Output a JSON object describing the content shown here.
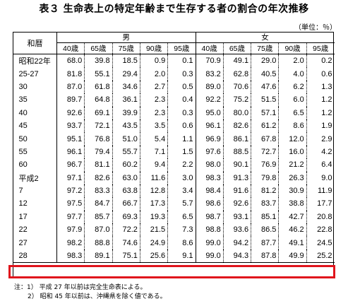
{
  "title": "表３ 生命表上の特定年齢まで生存する者の割合の年次推移",
  "unit": "（単位：％）",
  "header": {
    "era": "和暦",
    "male": "男",
    "female": "女",
    "ages": [
      "40歳",
      "65歳",
      "75歳",
      "90歳",
      "95歳"
    ]
  },
  "rows": [
    {
      "year": "昭和22年",
      "male": [
        "68.0",
        "39.8",
        "18.5",
        "0.9",
        "0.1"
      ],
      "female": [
        "70.9",
        "49.1",
        "29.0",
        "2.0",
        "0.2"
      ]
    },
    {
      "year": "25-27",
      "male": [
        "81.8",
        "55.1",
        "29.4",
        "2.0",
        "0.3"
      ],
      "female": [
        "83.2",
        "62.8",
        "40.5",
        "4.0",
        "0.6"
      ]
    },
    {
      "year": "30",
      "male": [
        "87.0",
        "61.8",
        "34.6",
        "2.7",
        "0.5"
      ],
      "female": [
        "89.0",
        "70.6",
        "47.6",
        "6.2",
        "1.3"
      ]
    },
    {
      "year": "35",
      "male": [
        "89.7",
        "64.8",
        "36.1",
        "2.3",
        "0.4"
      ],
      "female": [
        "92.2",
        "75.2",
        "51.5",
        "6.0",
        "1.2"
      ]
    },
    {
      "year": "40",
      "male": [
        "92.6",
        "69.1",
        "39.9",
        "2.3",
        "0.3"
      ],
      "female": [
        "95.0",
        "80.0",
        "57.1",
        "6.5",
        "1.2"
      ]
    },
    {
      "year": "45",
      "male": [
        "93.7",
        "72.1",
        "43.5",
        "3.5",
        "0.6"
      ],
      "female": [
        "96.1",
        "82.6",
        "61.2",
        "8.6",
        "1.9"
      ]
    },
    {
      "year": "50",
      "male": [
        "95.1",
        "76.8",
        "51.0",
        "5.4",
        "1.1"
      ],
      "female": [
        "96.9",
        "86.1",
        "67.8",
        "12.0",
        "2.9"
      ]
    },
    {
      "year": "55",
      "male": [
        "96.1",
        "79.4",
        "55.7",
        "7.1",
        "1.5"
      ],
      "female": [
        "97.6",
        "88.5",
        "72.7",
        "16.0",
        "4.2"
      ]
    },
    {
      "year": "60",
      "male": [
        "96.7",
        "81.1",
        "60.2",
        "9.4",
        "2.2"
      ],
      "female": [
        "98.0",
        "90.1",
        "76.9",
        "21.2",
        "6.4"
      ]
    },
    {
      "year": "平成2",
      "male": [
        "97.1",
        "82.6",
        "63.0",
        "11.6",
        "3.0"
      ],
      "female": [
        "98.3",
        "91.3",
        "79.8",
        "26.3",
        "9.0"
      ]
    },
    {
      "year": "7",
      "male": [
        "97.2",
        "83.3",
        "63.8",
        "12.8",
        "3.4"
      ],
      "female": [
        "98.4",
        "91.6",
        "81.2",
        "30.9",
        "11.9"
      ]
    },
    {
      "year": "12",
      "male": [
        "97.5",
        "84.7",
        "66.7",
        "17.3",
        "5.7"
      ],
      "female": [
        "98.6",
        "92.6",
        "83.7",
        "38.8",
        "17.7"
      ]
    },
    {
      "year": "17",
      "male": [
        "97.7",
        "85.7",
        "69.3",
        "19.3",
        "6.5"
      ],
      "female": [
        "98.7",
        "93.1",
        "85.1",
        "42.7",
        "20.8"
      ]
    },
    {
      "year": "22",
      "male": [
        "97.9",
        "87.0",
        "72.2",
        "21.5",
        "7.3"
      ],
      "female": [
        "98.8",
        "93.6",
        "86.5",
        "46.2",
        "22.8"
      ]
    },
    {
      "year": "27",
      "male": [
        "98.2",
        "88.8",
        "74.6",
        "24.9",
        "8.6"
      ],
      "female": [
        "99.0",
        "94.2",
        "87.7",
        "49.1",
        "24.5"
      ]
    },
    {
      "year": "28",
      "male": [
        "98.3",
        "89.1",
        "75.1",
        "25.6",
        "9.1"
      ],
      "female": [
        "99.0",
        "94.3",
        "87.8",
        "49.9",
        "25.2"
      ]
    }
  ],
  "notes": [
    "注：1） 平成 27 年以前は完全生命表による。",
    "2） 昭和 45 年以前は、沖縄県を除く値である。"
  ],
  "colors": {
    "highlight": "#e0141c"
  }
}
